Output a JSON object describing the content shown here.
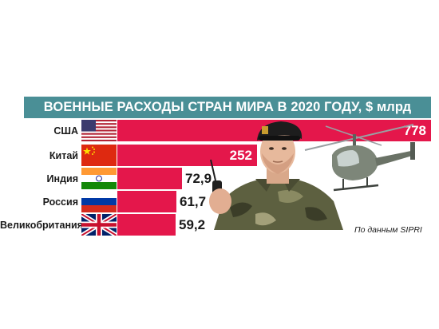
{
  "chart_data": {
    "type": "bar",
    "title": "ВОЕННЫЕ РАСХОДЫ СТРАН МИРА В 2020 ГОДУ, $ млрд",
    "categories": [
      "США",
      "Китай",
      "Индия",
      "Россия",
      "Великобритания"
    ],
    "values": [
      778,
      252,
      72.9,
      61.7,
      59.2
    ],
    "value_labels": [
      "778",
      "252",
      "72,9",
      "61,7",
      "59,2"
    ],
    "bar_color": "#e4174b",
    "title_bar_color": "#4a8f96",
    "orientation": "horizontal",
    "flags": [
      "us-flag-icon",
      "china-flag-icon",
      "india-flag-icon",
      "russia-flag-icon",
      "uk-flag-icon"
    ],
    "source": "По данным  SIPRI"
  }
}
